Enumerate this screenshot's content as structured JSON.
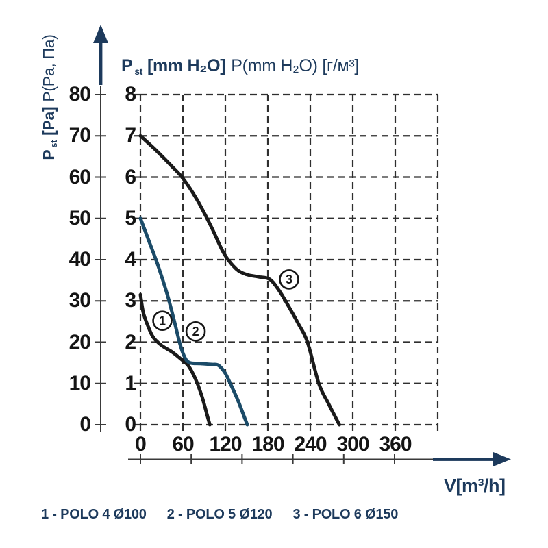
{
  "colors": {
    "navy": "#1d3a5c",
    "curve_blue": "#1b4b68",
    "curve_black": "#1a1a1a",
    "grid": "#2f2f2f",
    "axis_line": "#3a3a3a",
    "tick_text": "#141414",
    "background": "#ffffff"
  },
  "pa_axis": {
    "label_p": "P",
    "label_sub": "st",
    "label_unit": "[Pa]",
    "label_rest": "P(Pa, Па)"
  },
  "mm_axis": {
    "title_p": "P",
    "title_sub": "st",
    "title_unit": "[mm H₂O]",
    "title_rest": "P(mm H₂O) [г/м³]"
  },
  "x_axis": {
    "label": "V[m³/h]"
  },
  "legend": {
    "items": [
      "1 - POLO 4 Ø100",
      "2 - POLO 5 Ø120",
      "3 - POLO 6 Ø150"
    ]
  },
  "chart_data": {
    "type": "line",
    "title": "Pst [mm H₂O] P(mm H₂O) [г/м³]",
    "ylabel_left": "Pst [Pa] P(Pa, Па)",
    "xlabel": "V[m³/h]",
    "grid": "dashed",
    "x_ticks": [
      0,
      60,
      120,
      180,
      240,
      300,
      360
    ],
    "x_grid_max": 420,
    "y_ticks_pa": [
      0,
      10,
      20,
      30,
      40,
      50,
      60,
      70,
      80
    ],
    "y_ticks_mm": [
      0,
      1,
      2,
      3,
      4,
      5,
      6,
      7,
      8
    ],
    "ylim_mm": [
      0,
      8
    ],
    "ylim_pa": [
      0,
      80
    ],
    "series": [
      {
        "id": 1,
        "name": "POLO 4 Ø100",
        "color_key": "curve_black",
        "points_mm": [
          [
            0,
            3.15
          ],
          [
            4,
            2.72
          ],
          [
            10,
            2.42
          ],
          [
            18,
            2.12
          ],
          [
            30,
            1.92
          ],
          [
            45,
            1.76
          ],
          [
            58,
            1.58
          ],
          [
            68,
            1.42
          ],
          [
            78,
            1.1
          ],
          [
            87,
            0.68
          ],
          [
            94,
            0.25
          ],
          [
            98,
            0
          ]
        ]
      },
      {
        "id": 2,
        "name": "POLO 5 Ø120",
        "color_key": "curve_blue",
        "points_mm": [
          [
            0,
            5.0
          ],
          [
            12,
            4.45
          ],
          [
            25,
            3.85
          ],
          [
            38,
            3.15
          ],
          [
            48,
            2.5
          ],
          [
            56,
            1.95
          ],
          [
            63,
            1.62
          ],
          [
            70,
            1.5
          ],
          [
            85,
            1.48
          ],
          [
            100,
            1.46
          ],
          [
            110,
            1.44
          ],
          [
            119,
            1.27
          ],
          [
            127,
            1.0
          ],
          [
            138,
            0.58
          ],
          [
            146,
            0.22
          ],
          [
            151,
            0
          ]
        ]
      },
      {
        "id": 3,
        "name": "POLO 6 Ø150",
        "color_key": "curve_black",
        "points_mm": [
          [
            0,
            7.0
          ],
          [
            22,
            6.65
          ],
          [
            45,
            6.25
          ],
          [
            60,
            5.97
          ],
          [
            80,
            5.45
          ],
          [
            100,
            4.8
          ],
          [
            118,
            4.15
          ],
          [
            135,
            3.78
          ],
          [
            150,
            3.64
          ],
          [
            168,
            3.58
          ],
          [
            183,
            3.52
          ],
          [
            196,
            3.25
          ],
          [
            210,
            2.85
          ],
          [
            223,
            2.45
          ],
          [
            236,
            2.0
          ],
          [
            252,
            1.0
          ],
          [
            266,
            0.5
          ],
          [
            281,
            0
          ]
        ]
      }
    ],
    "curve_markers": [
      {
        "label": "1",
        "x": 31,
        "y_mm": 2.52
      },
      {
        "label": "2",
        "x": 78,
        "y_mm": 2.26
      },
      {
        "label": "3",
        "x": 210,
        "y_mm": 3.52
      }
    ]
  }
}
